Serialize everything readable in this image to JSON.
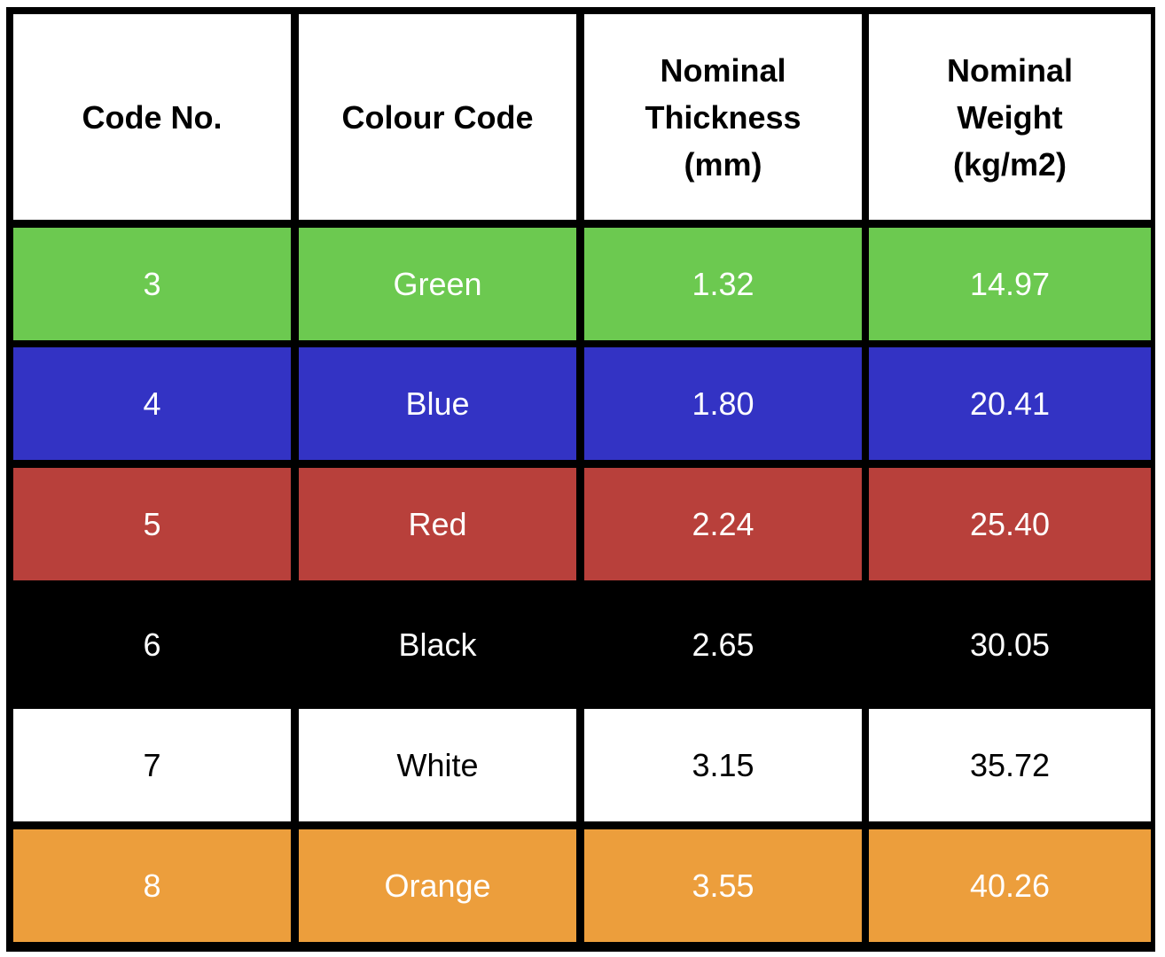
{
  "table": {
    "headers": [
      "Code No.",
      "Colour Code",
      "Nominal\nThickness\n(mm)",
      "Nominal\nWeight\n(kg/m2)"
    ],
    "rows": [
      {
        "cells": [
          "3",
          "Green",
          "1.32",
          "14.97"
        ],
        "bg": "#6cc950",
        "fg": "#ffffff"
      },
      {
        "cells": [
          "4",
          "Blue",
          "1.80",
          "20.41"
        ],
        "bg": "#3333c4",
        "fg": "#ffffff"
      },
      {
        "cells": [
          "5",
          "Red",
          "2.24",
          "25.40"
        ],
        "bg": "#b8403b",
        "fg": "#ffffff"
      },
      {
        "cells": [
          "6",
          "Black",
          "2.65",
          "30.05"
        ],
        "bg": "#000000",
        "fg": "#ffffff"
      },
      {
        "cells": [
          "7",
          "White",
          "3.15",
          "35.72"
        ],
        "bg": "#ffffff",
        "fg": "#000000"
      },
      {
        "cells": [
          "8",
          "Orange",
          "3.55",
          "40.26"
        ],
        "bg": "#ec9e3c",
        "fg": "#ffffff"
      }
    ]
  }
}
